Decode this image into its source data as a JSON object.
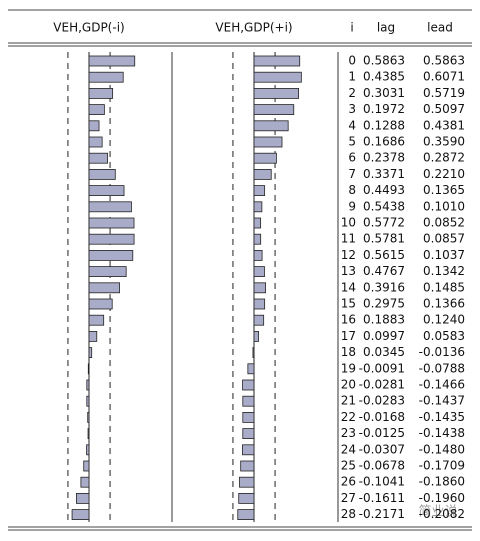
{
  "chart_data": {
    "type": "correlogram",
    "index_label": "i",
    "categories": [
      0,
      1,
      2,
      3,
      4,
      5,
      6,
      7,
      8,
      9,
      10,
      11,
      12,
      13,
      14,
      15,
      16,
      17,
      18,
      19,
      20,
      21,
      22,
      23,
      24,
      25,
      26,
      27,
      28
    ],
    "xlim": [
      -1,
      1
    ],
    "confidence_bound": 0.27,
    "series": [
      {
        "name": "lag",
        "panel_title": "VEH,GDP(-i)",
        "color": "#a9acc8",
        "values": [
          0.5863,
          0.4385,
          0.3031,
          0.1972,
          0.1288,
          0.1686,
          0.2378,
          0.3371,
          0.4493,
          0.5438,
          0.5772,
          0.5781,
          0.5615,
          0.4767,
          0.3916,
          0.2975,
          0.1883,
          0.0997,
          0.0345,
          -0.0091,
          -0.0281,
          -0.0283,
          -0.0168,
          -0.0125,
          -0.0307,
          -0.0678,
          -0.1041,
          -0.1611,
          -0.2171
        ],
        "value_labels": [
          "0.5863",
          "0.4385",
          "0.3031",
          "0.1972",
          "0.1288",
          "0.1686",
          "0.2378",
          "0.3371",
          "0.4493",
          "0.5438",
          "0.5772",
          "0.5781",
          "0.5615",
          "0.4767",
          "0.3916",
          "0.2975",
          "0.1883",
          "0.0997",
          "0.0345",
          "-0.0091",
          "-0.0281",
          "-0.0283",
          "-0.0168",
          "-0.0125",
          "-0.0307",
          "-0.0678",
          "-0.1041",
          "-0.1611",
          "-0.2171"
        ]
      },
      {
        "name": "lead",
        "panel_title": "VEH,GDP(+i)",
        "color": "#a9acc8",
        "values": [
          0.5863,
          0.6071,
          0.5719,
          0.5097,
          0.4381,
          0.359,
          0.2872,
          0.221,
          0.1365,
          0.101,
          0.0852,
          0.0857,
          0.1037,
          0.1342,
          0.1485,
          0.1366,
          0.124,
          0.0583,
          -0.0136,
          -0.0788,
          -0.1466,
          -0.1437,
          -0.1435,
          -0.1438,
          -0.148,
          -0.1709,
          -0.186,
          -0.196,
          -0.2082
        ],
        "value_labels": [
          "0.5863",
          "0.6071",
          "0.5719",
          "0.5097",
          "0.4381",
          "0.3590",
          "0.2872",
          "0.2210",
          "0.1365",
          "0.1010",
          "0.0852",
          "0.0857",
          "0.1037",
          "0.1342",
          "0.1485",
          "0.1366",
          "0.1240",
          "0.0583",
          "-0.0136",
          "-0.0788",
          "-0.1466",
          "-0.1437",
          "-0.1435",
          "-0.1438",
          "-0.1480",
          "-0.1709",
          "-0.1860",
          "-0.1960",
          "-0.2082"
        ]
      }
    ]
  },
  "watermark": "简业说"
}
